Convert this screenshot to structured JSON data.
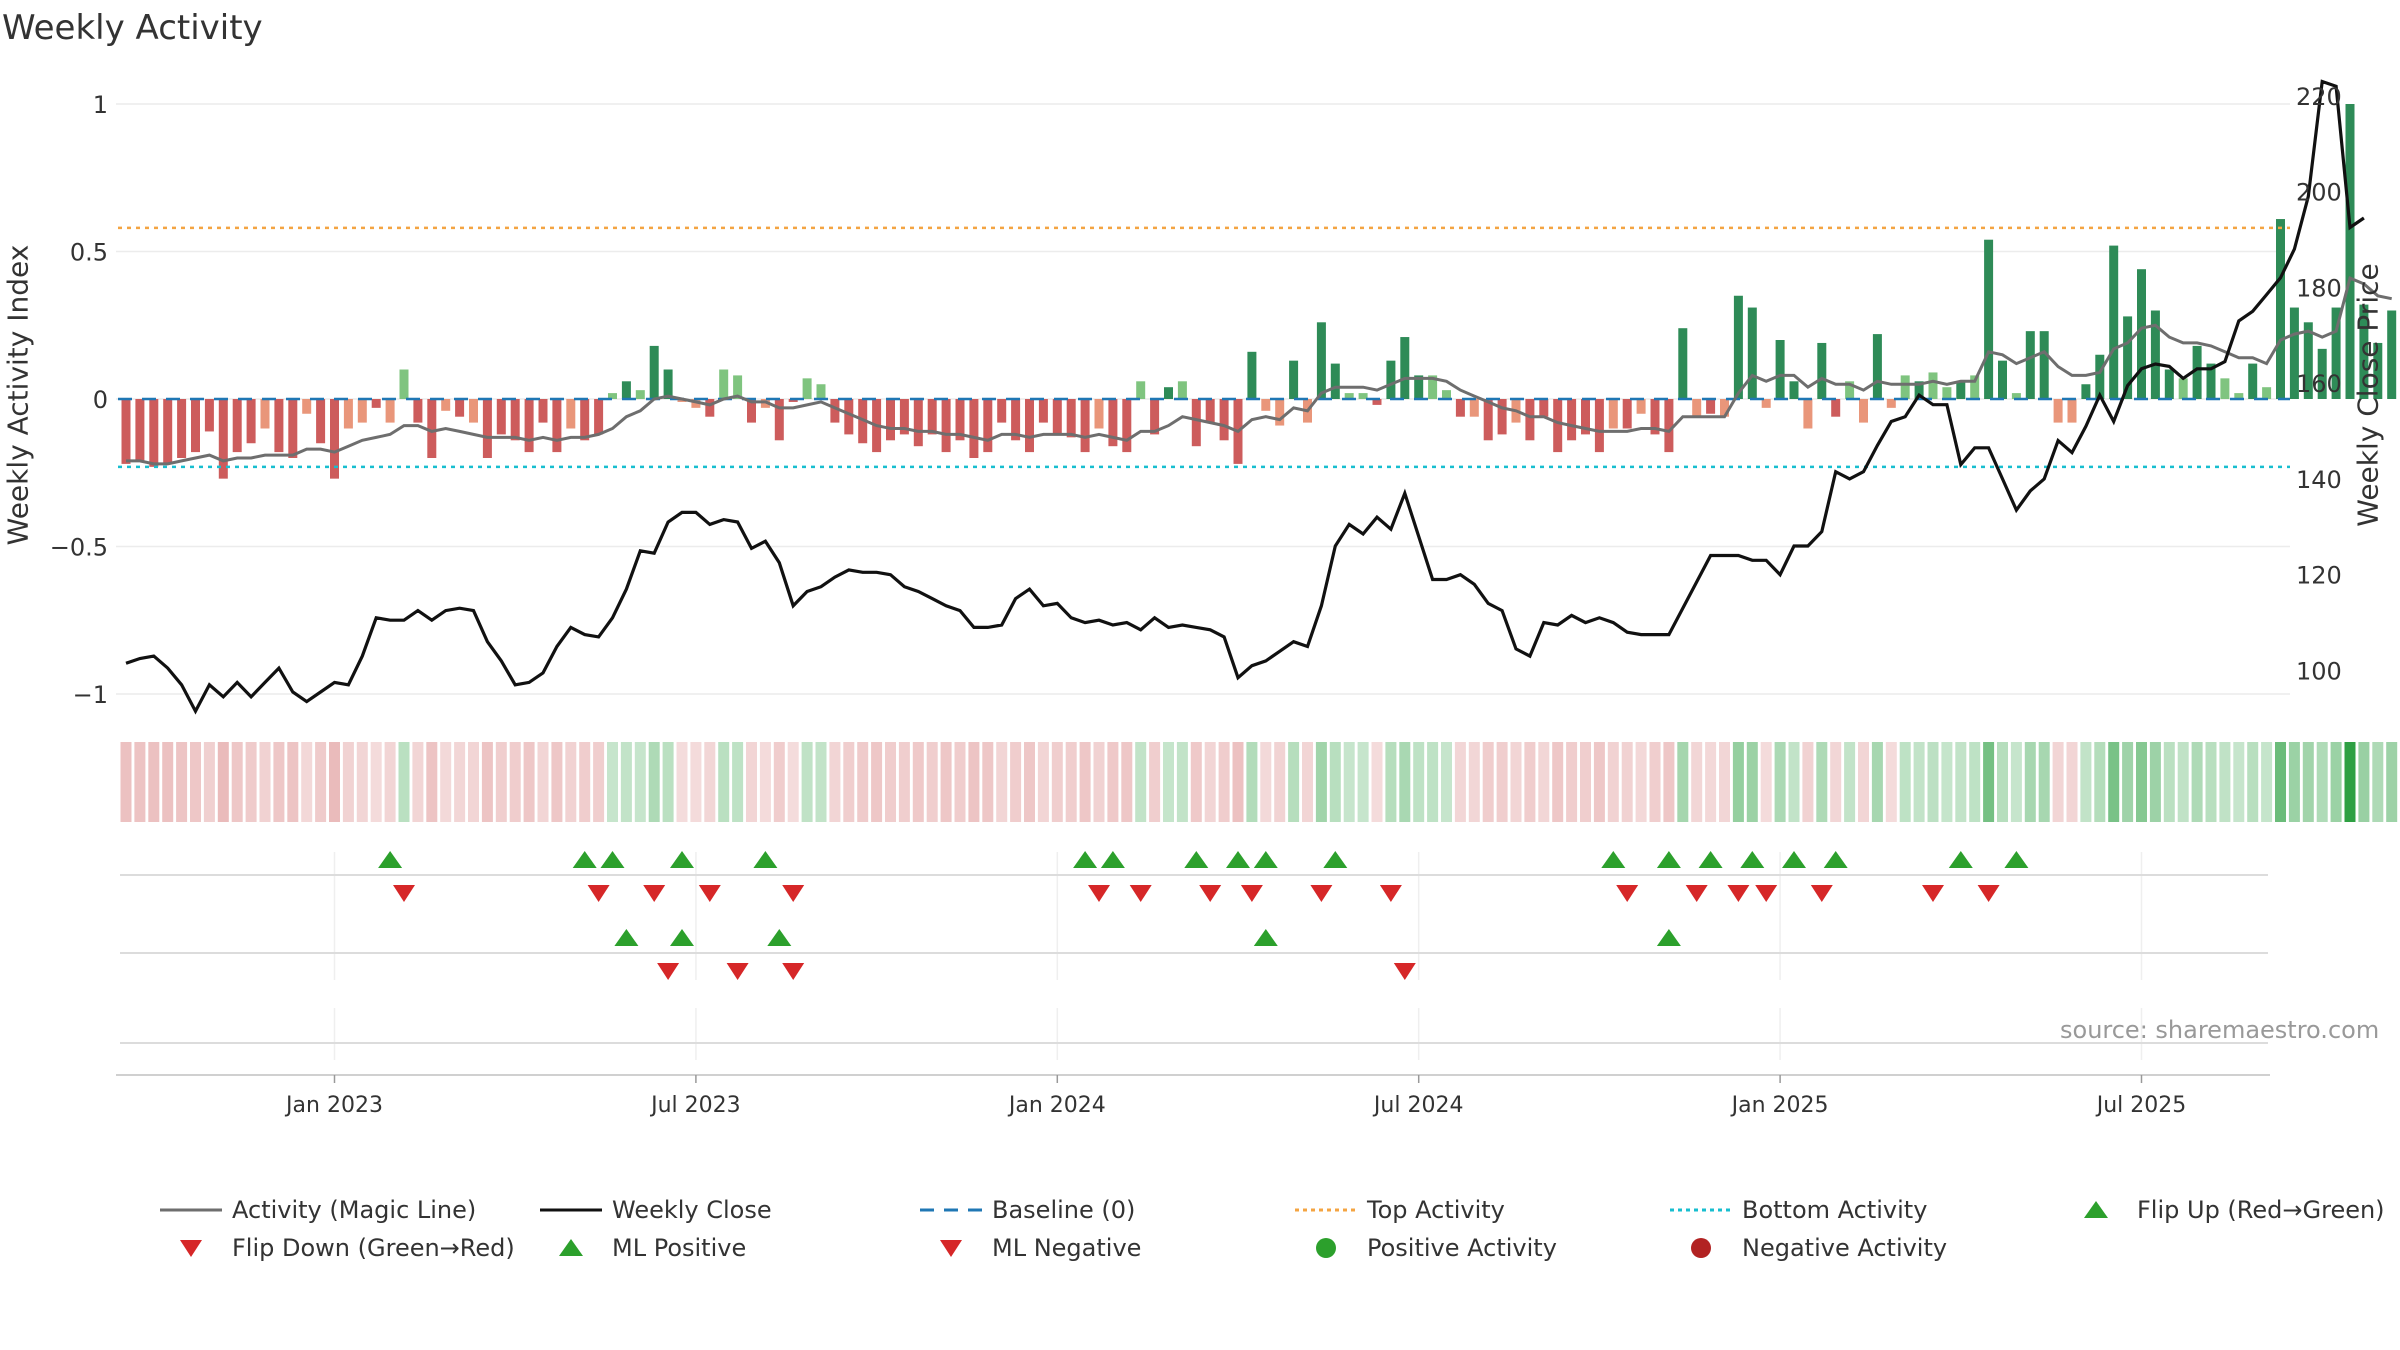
{
  "title": "Weekly Activity",
  "source": "source: sharemaestro.com",
  "y_left_label": "Weekly Activity Index",
  "y_right_label": "Weekly Close Price",
  "colors": {
    "pos_strong": "#2e8b57",
    "pos_light": "#7fc47f",
    "neg_strong": "#cd5c5c",
    "neg_light": "#e9967a",
    "magic_line": "#6e6e6e",
    "close_line": "#111111",
    "baseline": "#1f77b4",
    "top": "#f4a442",
    "bottom": "#17becf",
    "flip_up": "#2ca02c",
    "flip_down": "#d62728"
  },
  "legend": [
    {
      "label": "Activity (Magic Line)",
      "kind": "line",
      "color": "#6e6e6e"
    },
    {
      "label": "Weekly Close",
      "kind": "line",
      "color": "#111111"
    },
    {
      "label": "Baseline (0)",
      "kind": "dash",
      "color": "#1f77b4"
    },
    {
      "label": "Top Activity",
      "kind": "dot",
      "color": "#f4a442"
    },
    {
      "label": "Bottom Activity",
      "kind": "dot",
      "color": "#17becf"
    },
    {
      "label": "Flip Up (Red→Green)",
      "kind": "tri-up",
      "color": "#2ca02c"
    },
    {
      "label": "Flip Down (Green→Red)",
      "kind": "tri-down",
      "color": "#d62728"
    },
    {
      "label": "ML Positive",
      "kind": "tri-up",
      "color": "#2ca02c"
    },
    {
      "label": "ML Negative",
      "kind": "tri-down",
      "color": "#d62728"
    },
    {
      "label": "Positive Activity",
      "kind": "circle",
      "color": "#2ca02c"
    },
    {
      "label": "Negative Activity",
      "kind": "circle",
      "color": "#b22222"
    }
  ],
  "chart_data": {
    "type": "bar",
    "x_ticks": [
      "Jan 2023",
      "Jul 2023",
      "Jan 2024",
      "Jul 2024",
      "Jan 2025",
      "Jul 2025"
    ],
    "x_tick_weeks": [
      15,
      41,
      67,
      93,
      119,
      145
    ],
    "y_left": {
      "ticks": [
        1,
        0.5,
        0,
        -0.5,
        -1
      ],
      "tick_labels": [
        "1",
        "0.5",
        "0",
        "−0.5",
        "−1"
      ],
      "range": [
        -1.08,
        1.0
      ]
    },
    "y_right": {
      "ticks": [
        220,
        200,
        180,
        160,
        140,
        120,
        100
      ],
      "range": [
        90.7,
        225.4
      ]
    },
    "top_activity": 0.58,
    "bottom_activity": -0.23,
    "baseline": 0,
    "activity": [
      -0.22,
      -0.21,
      -0.23,
      -0.22,
      -0.2,
      -0.18,
      -0.11,
      -0.27,
      -0.18,
      -0.15,
      -0.1,
      -0.18,
      -0.2,
      -0.05,
      -0.15,
      -0.27,
      -0.1,
      -0.08,
      -0.03,
      -0.08,
      0.1,
      -0.08,
      -0.2,
      -0.04,
      -0.06,
      -0.08,
      -0.2,
      -0.12,
      -0.14,
      -0.18,
      -0.08,
      -0.18,
      -0.1,
      -0.14,
      -0.12,
      0.02,
      0.06,
      0.03,
      0.18,
      0.1,
      -0.01,
      -0.03,
      -0.06,
      0.1,
      0.08,
      -0.08,
      -0.03,
      -0.14,
      -0.01,
      0.07,
      0.05,
      -0.08,
      -0.12,
      -0.15,
      -0.18,
      -0.14,
      -0.12,
      -0.16,
      -0.12,
      -0.18,
      -0.14,
      -0.2,
      -0.18,
      -0.08,
      -0.14,
      -0.18,
      -0.08,
      -0.12,
      -0.13,
      -0.18,
      -0.1,
      -0.16,
      -0.18,
      0.06,
      -0.12,
      0.04,
      0.06,
      -0.16,
      -0.08,
      -0.14,
      -0.22,
      0.16,
      -0.04,
      -0.09,
      0.13,
      -0.08,
      0.26,
      0.12,
      0.02,
      0.02,
      -0.02,
      0.13,
      0.21,
      0.08,
      0.08,
      0.03,
      -0.06,
      -0.06,
      -0.14,
      -0.12,
      -0.08,
      -0.14,
      -0.06,
      -0.18,
      -0.14,
      -0.12,
      -0.18,
      -0.1,
      -0.1,
      -0.05,
      -0.12,
      -0.18,
      0.24,
      -0.06,
      -0.05,
      -0.06,
      0.35,
      0.31,
      -0.03,
      0.2,
      0.06,
      -0.1,
      0.19,
      -0.06,
      0.06,
      -0.08,
      0.22,
      -0.03,
      0.08,
      0.06,
      0.09,
      0.04,
      0.06,
      0.08,
      0.54,
      0.13,
      0.02,
      0.23,
      0.23,
      -0.08,
      -0.08,
      0.05,
      0.15,
      0.52,
      0.28,
      0.44,
      0.3,
      0.1,
      0.07,
      0.18,
      0.12,
      0.07,
      0.02,
      0.12,
      0.04,
      0.61,
      0.31,
      0.26,
      0.17,
      0.31,
      1.0,
      0.32,
      0.19,
      0.3
    ],
    "magic_line": [
      -0.21,
      -0.21,
      -0.22,
      -0.22,
      -0.21,
      -0.2,
      -0.19,
      -0.21,
      -0.2,
      -0.2,
      -0.19,
      -0.19,
      -0.19,
      -0.17,
      -0.17,
      -0.18,
      -0.16,
      -0.14,
      -0.13,
      -0.12,
      -0.09,
      -0.09,
      -0.11,
      -0.1,
      -0.11,
      -0.12,
      -0.13,
      -0.13,
      -0.13,
      -0.14,
      -0.13,
      -0.14,
      -0.13,
      -0.13,
      -0.12,
      -0.1,
      -0.06,
      -0.04,
      0.0,
      0.01,
      0.0,
      -0.01,
      -0.02,
      0.0,
      0.01,
      -0.01,
      -0.01,
      -0.03,
      -0.03,
      -0.02,
      -0.01,
      -0.03,
      -0.05,
      -0.07,
      -0.09,
      -0.1,
      -0.1,
      -0.11,
      -0.11,
      -0.12,
      -0.12,
      -0.13,
      -0.14,
      -0.12,
      -0.12,
      -0.13,
      -0.12,
      -0.12,
      -0.12,
      -0.13,
      -0.12,
      -0.13,
      -0.14,
      -0.11,
      -0.11,
      -0.09,
      -0.06,
      -0.07,
      -0.08,
      -0.09,
      -0.11,
      -0.07,
      -0.06,
      -0.07,
      -0.03,
      -0.04,
      0.02,
      0.04,
      0.04,
      0.04,
      0.03,
      0.05,
      0.07,
      0.07,
      0.07,
      0.06,
      0.03,
      0.01,
      -0.01,
      -0.03,
      -0.04,
      -0.06,
      -0.06,
      -0.08,
      -0.09,
      -0.1,
      -0.11,
      -0.11,
      -0.11,
      -0.1,
      -0.1,
      -0.11,
      -0.06,
      -0.06,
      -0.06,
      -0.06,
      0.02,
      0.08,
      0.06,
      0.08,
      0.08,
      0.04,
      0.07,
      0.05,
      0.05,
      0.03,
      0.06,
      0.05,
      0.05,
      0.05,
      0.06,
      0.05,
      0.06,
      0.06,
      0.16,
      0.15,
      0.12,
      0.14,
      0.16,
      0.11,
      0.08,
      0.08,
      0.09,
      0.17,
      0.19,
      0.24,
      0.25,
      0.21,
      0.19,
      0.19,
      0.18,
      0.16,
      0.14,
      0.14,
      0.12,
      0.2,
      0.22,
      0.23,
      0.21,
      0.23,
      0.41,
      0.39,
      0.35,
      0.34
    ],
    "weekly_close": [
      101.5,
      102.5,
      103,
      100.5,
      97,
      91.5,
      97,
      94.5,
      97.5,
      94.5,
      97.5,
      100.5,
      95.5,
      93.5,
      95.5,
      97.5,
      97,
      103,
      111,
      110.5,
      110.5,
      112.5,
      110.5,
      112.5,
      113,
      112.5,
      106,
      102,
      97,
      97.5,
      99.5,
      105,
      109,
      107.5,
      107,
      111,
      117,
      125,
      124.5,
      131,
      133,
      133,
      130.5,
      131.5,
      131,
      125.5,
      127,
      122.5,
      113.5,
      116.5,
      117.5,
      119.5,
      121,
      120.5,
      120.5,
      120,
      117.5,
      116.5,
      115,
      113.5,
      112.5,
      109,
      109,
      109.5,
      115,
      117,
      113.5,
      114,
      111,
      110,
      110.5,
      109.5,
      110,
      108.5,
      111,
      109,
      109.5,
      109,
      108.5,
      107,
      98.5,
      101,
      102,
      104,
      106,
      105,
      113.5,
      126,
      130.5,
      128.5,
      132,
      129.5,
      137,
      128,
      119,
      119,
      120,
      118,
      114,
      112.5,
      104.5,
      103,
      110,
      109.5,
      111.5,
      110,
      111,
      110,
      108,
      107.5,
      107.5,
      107.5,
      113,
      118.5,
      124,
      124,
      124,
      123,
      123,
      120,
      126,
      126,
      129,
      141.5,
      140,
      141.5,
      147,
      152,
      153,
      157.5,
      155.5,
      155.5,
      143,
      146.5,
      146.5,
      140,
      133.5,
      137.5,
      140,
      148,
      145.5,
      151,
      157.5,
      152,
      159.5,
      163,
      164,
      163.5,
      161,
      163,
      163,
      164.5,
      173,
      175,
      178.5,
      182,
      188,
      199,
      223,
      222,
      192.5,
      194.5
    ]
  },
  "strip_activity": [
    -0.22,
    -0.21,
    -0.23,
    -0.22,
    -0.2,
    -0.18,
    -0.11,
    -0.27,
    -0.18,
    -0.15,
    -0.1,
    -0.18,
    -0.2,
    -0.05,
    -0.15,
    -0.27,
    -0.1,
    -0.08,
    -0.03,
    -0.08,
    0.1,
    -0.08,
    -0.2,
    -0.04,
    -0.06,
    -0.08,
    -0.2,
    -0.12,
    -0.14,
    -0.18,
    -0.08,
    -0.18,
    -0.1,
    -0.14,
    -0.12,
    0.02,
    0.06,
    0.03,
    0.18,
    0.1,
    -0.01,
    -0.03,
    -0.06,
    0.1,
    0.08,
    -0.08,
    -0.03,
    -0.14,
    -0.01,
    0.07,
    0.05,
    -0.08,
    -0.12,
    -0.15,
    -0.18,
    -0.14,
    -0.12,
    -0.16,
    -0.12,
    -0.18,
    -0.14,
    -0.2,
    -0.18,
    -0.08,
    -0.14,
    -0.18,
    -0.08,
    -0.12,
    -0.13,
    -0.18,
    -0.1,
    -0.16,
    -0.18,
    0.06,
    -0.12,
    0.04,
    0.06,
    -0.16,
    -0.08,
    -0.14,
    -0.22,
    0.16,
    -0.04,
    -0.09,
    0.13,
    -0.08,
    0.26,
    0.12,
    0.02,
    0.02,
    -0.02,
    0.13,
    0.21,
    0.08,
    0.08,
    0.03,
    -0.06,
    -0.06,
    -0.14,
    -0.12,
    -0.08,
    -0.14,
    -0.06,
    -0.18,
    -0.14,
    -0.12,
    -0.18,
    -0.1,
    -0.1,
    -0.05,
    -0.12,
    -0.18,
    0.24,
    -0.06,
    -0.05,
    -0.06,
    0.35,
    0.31,
    -0.03,
    0.2,
    0.06,
    -0.1,
    0.19,
    -0.06,
    0.06,
    -0.08,
    0.22,
    -0.03,
    0.08,
    0.06,
    0.09,
    0.04,
    0.06,
    0.08,
    0.54,
    0.13,
    0.02,
    0.23,
    0.23,
    -0.08,
    -0.08,
    0.05,
    0.15,
    0.52,
    0.28,
    0.44,
    0.3,
    0.1,
    0.07,
    0.18,
    0.12,
    0.07,
    0.02,
    0.12,
    0.04,
    0.61,
    0.31,
    0.26,
    0.17,
    0.31,
    1.0,
    0.32,
    0.19,
    0.3
  ],
  "flip_up_weeks": [
    19,
    33,
    35,
    40,
    46,
    69,
    71,
    77,
    80,
    82,
    87,
    107,
    111,
    114,
    117,
    120,
    123,
    132,
    136
  ],
  "flip_down_weeks": [
    20,
    34,
    38,
    42,
    48,
    70,
    73,
    78,
    81,
    86,
    91,
    108,
    113,
    116,
    118,
    122,
    130,
    134
  ],
  "ml_positive_weeks": [
    36,
    40,
    47,
    82,
    111
  ],
  "ml_negative_weeks": [
    39,
    44,
    48,
    92
  ]
}
